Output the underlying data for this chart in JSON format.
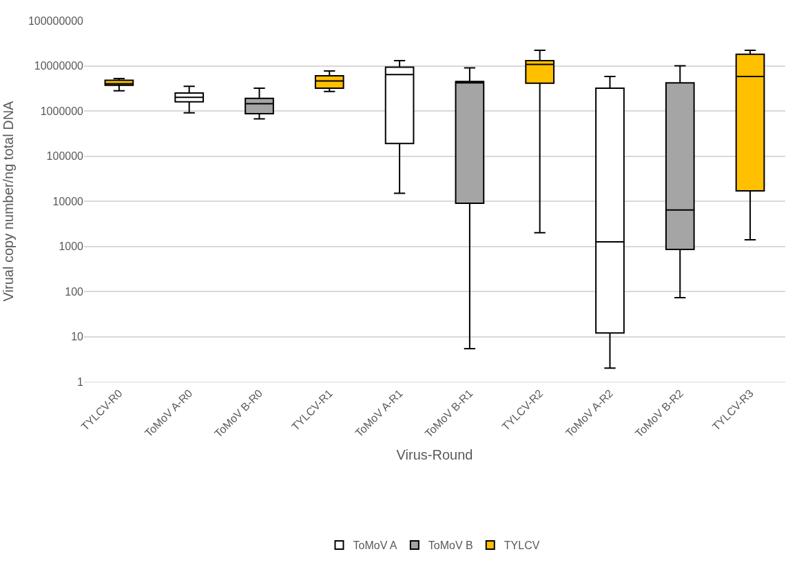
{
  "chart_data": {
    "type": "box",
    "xlabel": "Virus-Round",
    "ylabel": "Virual copy number/ng total DNA",
    "categories": [
      "TYLCV-R0",
      "ToMoV A-R0",
      "ToMoV B-R0",
      "TYLCV-R1",
      "ToMoV A-R1",
      "ToMoV B-R1",
      "TYLCV-R2",
      "ToMoV A-R2",
      "ToMoV B-R2",
      "TYLCV-R3"
    ],
    "log": "y",
    "ylim": [
      1,
      100000000
    ],
    "yticks": [
      1,
      10,
      100,
      1000,
      10000,
      100000,
      1000000,
      10000000,
      100000000
    ],
    "grid": "y",
    "legend": "bottom",
    "series": [
      {
        "name": "ToMoV A",
        "color": "#ffffff",
        "boxes": [
          null,
          {
            "low": 910000,
            "q1": 1600000,
            "median": 2000000,
            "q3": 2500000,
            "high": 3500000
          },
          null,
          null,
          {
            "low": 15000,
            "q1": 190000,
            "median": 6400000,
            "q3": 9300000,
            "high": 13000000
          },
          null,
          null,
          {
            "low": 2,
            "q1": 12,
            "median": 1260,
            "q3": 3200000,
            "high": 5800000
          },
          null,
          null
        ]
      },
      {
        "name": "ToMoV B",
        "color": "#a5a5a5",
        "boxes": [
          null,
          null,
          {
            "low": 670000,
            "q1": 870000,
            "median": 1450000,
            "q3": 1900000,
            "high": 3200000
          },
          null,
          null,
          {
            "low": 5.4,
            "q1": 9000,
            "median": 4200000,
            "q3": 4500000,
            "high": 9000000
          },
          null,
          null,
          {
            "low": 73,
            "q1": 850,
            "median": 6400,
            "q3": 4200000,
            "high": 10000000
          },
          null
        ]
      },
      {
        "name": "TYLCV",
        "color": "#ffc000",
        "boxes": [
          {
            "low": 2800000,
            "q1": 3700000,
            "median": 4000000,
            "q3": 4800000,
            "high": 5200000
          },
          null,
          null,
          {
            "low": 2700000,
            "q1": 3200000,
            "median": 4600000,
            "q3": 6000000,
            "high": 7700000
          },
          null,
          null,
          {
            "low": 2000,
            "q1": 4100000,
            "median": 10700000,
            "q3": 13000000,
            "high": 22000000
          },
          null,
          null,
          {
            "low": 1400,
            "q1": 17000,
            "median": 5800000,
            "q3": 18000000,
            "high": 22000000
          }
        ]
      }
    ]
  }
}
